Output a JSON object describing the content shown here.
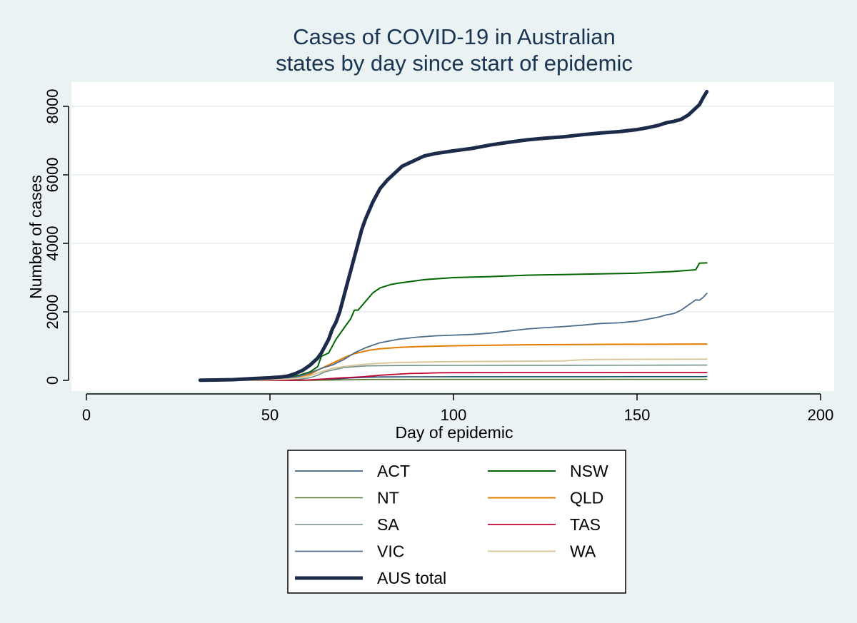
{
  "chart_data": {
    "type": "line",
    "title": [
      "Cases of COVID-19 in Australian",
      "states by day since start of epidemic"
    ],
    "xlabel": "Day of epidemic",
    "ylabel": "Number of cases",
    "xlim": [
      0,
      200
    ],
    "ylim": [
      0,
      8800
    ],
    "xticks": [
      0,
      50,
      100,
      150,
      200
    ],
    "yticks": [
      0,
      2000,
      4000,
      6000,
      8000
    ],
    "grid": "horizontal",
    "legend_position": "bottom",
    "series": [
      {
        "name": "ACT",
        "color": "#1a476f",
        "width": 1.6,
        "points": [
          [
            31,
            0
          ],
          [
            50,
            0
          ],
          [
            58,
            2
          ],
          [
            62,
            6
          ],
          [
            65,
            20
          ],
          [
            68,
            40
          ],
          [
            72,
            70
          ],
          [
            76,
            90
          ],
          [
            80,
            100
          ],
          [
            90,
            104
          ],
          [
            100,
            106
          ],
          [
            120,
            107
          ],
          [
            140,
            107
          ],
          [
            160,
            108
          ],
          [
            168,
            109
          ],
          [
            169,
            113
          ]
        ]
      },
      {
        "name": "NSW",
        "color": "#006400",
        "width": 2,
        "points": [
          [
            31,
            3
          ],
          [
            40,
            5
          ],
          [
            45,
            20
          ],
          [
            50,
            45
          ],
          [
            55,
            80
          ],
          [
            58,
            150
          ],
          [
            61,
            250
          ],
          [
            63,
            400
          ],
          [
            64,
            700
          ],
          [
            66,
            800
          ],
          [
            68,
            1200
          ],
          [
            70,
            1500
          ],
          [
            72,
            1800
          ],
          [
            73,
            2050
          ],
          [
            74,
            2050
          ],
          [
            76,
            2300
          ],
          [
            78,
            2550
          ],
          [
            80,
            2700
          ],
          [
            83,
            2800
          ],
          [
            85,
            2840
          ],
          [
            88,
            2880
          ],
          [
            92,
            2940
          ],
          [
            100,
            3000
          ],
          [
            110,
            3030
          ],
          [
            120,
            3070
          ],
          [
            130,
            3090
          ],
          [
            140,
            3110
          ],
          [
            150,
            3130
          ],
          [
            160,
            3180
          ],
          [
            166,
            3230
          ],
          [
            167,
            3420
          ],
          [
            169,
            3430
          ]
        ]
      },
      {
        "name": "NT",
        "color": "#55752f",
        "width": 1.6,
        "points": [
          [
            31,
            0
          ],
          [
            55,
            0
          ],
          [
            62,
            3
          ],
          [
            66,
            8
          ],
          [
            70,
            15
          ],
          [
            75,
            25
          ],
          [
            80,
            28
          ],
          [
            100,
            29
          ],
          [
            169,
            29
          ]
        ]
      },
      {
        "name": "QLD",
        "color": "#e37e00",
        "width": 2,
        "points": [
          [
            31,
            0
          ],
          [
            45,
            3
          ],
          [
            50,
            15
          ],
          [
            55,
            40
          ],
          [
            58,
            80
          ],
          [
            61,
            180
          ],
          [
            63,
            300
          ],
          [
            65,
            400
          ],
          [
            67,
            500
          ],
          [
            69,
            600
          ],
          [
            71,
            700
          ],
          [
            73,
            780
          ],
          [
            75,
            830
          ],
          [
            77,
            880
          ],
          [
            80,
            920
          ],
          [
            85,
            960
          ],
          [
            90,
            985
          ],
          [
            100,
            1010
          ],
          [
            120,
            1040
          ],
          [
            140,
            1050
          ],
          [
            169,
            1060
          ]
        ]
      },
      {
        "name": "SA",
        "color": "#6e8e84",
        "width": 1.6,
        "points": [
          [
            31,
            0
          ],
          [
            50,
            3
          ],
          [
            55,
            10
          ],
          [
            58,
            30
          ],
          [
            61,
            80
          ],
          [
            63,
            150
          ],
          [
            65,
            250
          ],
          [
            67,
            300
          ],
          [
            70,
            370
          ],
          [
            73,
            400
          ],
          [
            76,
            420
          ],
          [
            80,
            430
          ],
          [
            90,
            435
          ],
          [
            100,
            438
          ],
          [
            130,
            440
          ],
          [
            169,
            445
          ]
        ]
      },
      {
        "name": "TAS",
        "color": "#c10534",
        "width": 1.8,
        "points": [
          [
            31,
            0
          ],
          [
            55,
            0
          ],
          [
            60,
            10
          ],
          [
            63,
            30
          ],
          [
            66,
            50
          ],
          [
            69,
            69
          ],
          [
            72,
            85
          ],
          [
            76,
            110
          ],
          [
            80,
            150
          ],
          [
            84,
            175
          ],
          [
            88,
            200
          ],
          [
            92,
            208
          ],
          [
            96,
            220
          ],
          [
            100,
            225
          ],
          [
            120,
            227
          ],
          [
            169,
            228
          ]
        ]
      },
      {
        "name": "VIC",
        "color": "#4b6b8a",
        "width": 1.8,
        "points": [
          [
            31,
            0
          ],
          [
            45,
            5
          ],
          [
            50,
            25
          ],
          [
            55,
            60
          ],
          [
            58,
            120
          ],
          [
            61,
            220
          ],
          [
            64,
            350
          ],
          [
            67,
            450
          ],
          [
            70,
            600
          ],
          [
            73,
            800
          ],
          [
            76,
            950
          ],
          [
            80,
            1100
          ],
          [
            85,
            1200
          ],
          [
            90,
            1260
          ],
          [
            95,
            1300
          ],
          [
            100,
            1320
          ],
          [
            105,
            1340
          ],
          [
            110,
            1380
          ],
          [
            115,
            1440
          ],
          [
            120,
            1500
          ],
          [
            125,
            1540
          ],
          [
            130,
            1570
          ],
          [
            135,
            1610
          ],
          [
            140,
            1660
          ],
          [
            145,
            1680
          ],
          [
            150,
            1730
          ],
          [
            153,
            1790
          ],
          [
            156,
            1850
          ],
          [
            158,
            1910
          ],
          [
            160,
            1950
          ],
          [
            162,
            2050
          ],
          [
            164,
            2200
          ],
          [
            166,
            2350
          ],
          [
            167,
            2340
          ],
          [
            168,
            2420
          ],
          [
            169,
            2540
          ]
        ]
      },
      {
        "name": "WA",
        "color": "#d9c89e",
        "width": 2,
        "points": [
          [
            31,
            0
          ],
          [
            45,
            3
          ],
          [
            50,
            15
          ],
          [
            55,
            35
          ],
          [
            58,
            70
          ],
          [
            61,
            140
          ],
          [
            64,
            250
          ],
          [
            67,
            350
          ],
          [
            70,
            400
          ],
          [
            73,
            440
          ],
          [
            76,
            470
          ],
          [
            80,
            500
          ],
          [
            85,
            520
          ],
          [
            90,
            530
          ],
          [
            95,
            540
          ],
          [
            100,
            545
          ],
          [
            120,
            560
          ],
          [
            130,
            570
          ],
          [
            135,
            600
          ],
          [
            140,
            610
          ],
          [
            169,
            620
          ]
        ]
      },
      {
        "name": "AUS total",
        "color": "#1c2b4a",
        "width": 5,
        "points": [
          [
            31,
            5
          ],
          [
            35,
            10
          ],
          [
            40,
            20
          ],
          [
            43,
            40
          ],
          [
            47,
            60
          ],
          [
            50,
            75
          ],
          [
            53,
            100
          ],
          [
            55,
            130
          ],
          [
            57,
            200
          ],
          [
            59,
            300
          ],
          [
            61,
            450
          ],
          [
            63,
            650
          ],
          [
            64,
            800
          ],
          [
            65,
            1000
          ],
          [
            66,
            1200
          ],
          [
            67,
            1500
          ],
          [
            68,
            1700
          ],
          [
            69,
            2000
          ],
          [
            70,
            2400
          ],
          [
            71,
            2800
          ],
          [
            72,
            3200
          ],
          [
            73,
            3600
          ],
          [
            74,
            4000
          ],
          [
            75,
            4400
          ],
          [
            76,
            4700
          ],
          [
            78,
            5200
          ],
          [
            80,
            5600
          ],
          [
            82,
            5850
          ],
          [
            84,
            6050
          ],
          [
            86,
            6250
          ],
          [
            88,
            6350
          ],
          [
            90,
            6450
          ],
          [
            92,
            6550
          ],
          [
            95,
            6620
          ],
          [
            100,
            6700
          ],
          [
            105,
            6770
          ],
          [
            110,
            6870
          ],
          [
            115,
            6950
          ],
          [
            120,
            7020
          ],
          [
            125,
            7070
          ],
          [
            130,
            7110
          ],
          [
            135,
            7170
          ],
          [
            140,
            7220
          ],
          [
            145,
            7260
          ],
          [
            150,
            7320
          ],
          [
            153,
            7380
          ],
          [
            156,
            7450
          ],
          [
            158,
            7520
          ],
          [
            160,
            7560
          ],
          [
            162,
            7620
          ],
          [
            164,
            7750
          ],
          [
            166,
            7950
          ],
          [
            167,
            8050
          ],
          [
            168,
            8250
          ],
          [
            169,
            8430
          ]
        ]
      }
    ]
  }
}
